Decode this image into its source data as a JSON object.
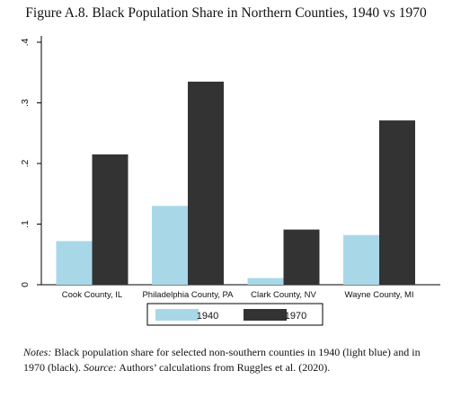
{
  "figure_title": "Figure A.8. Black Population Share in Northern Counties, 1940 vs 1970",
  "chart_data": {
    "type": "bar",
    "title": "",
    "xlabel": "",
    "ylabel": "",
    "categories": [
      "Cook County, IL",
      "Philadelphia County, PA",
      "Clark County, NV",
      "Wayne County, MI"
    ],
    "series": [
      {
        "name": "1940",
        "color": "#a8d8e8",
        "values": [
          0.072,
          0.13,
          0.011,
          0.082
        ]
      },
      {
        "name": "1970",
        "color": "#333333",
        "values": [
          0.215,
          0.335,
          0.091,
          0.271
        ]
      }
    ],
    "yticks": [
      0,
      0.1,
      0.2,
      0.3,
      0.4
    ],
    "ytick_labels": [
      "0",
      ".1",
      ".2",
      ".3",
      ".4"
    ],
    "ylim": [
      0,
      0.4
    ],
    "grid": false,
    "legend_position": "bottom-center"
  },
  "notes": {
    "label": "Notes:",
    "text": " Black population share for selected non-southern counties in 1940 (light blue) and in 1970 (black). ",
    "source_label": "Source:",
    "source_text": " Authors’ calculations from Ruggles et al. (2020)."
  }
}
